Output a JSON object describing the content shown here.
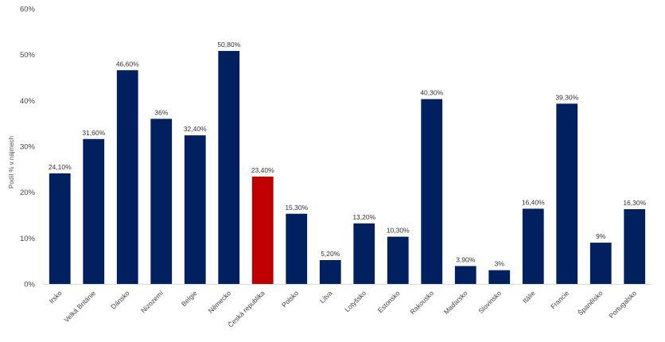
{
  "chart_data": {
    "type": "bar",
    "title": "",
    "xlabel": "",
    "ylabel": "Podíl % v nájmech",
    "ylim": [
      0,
      60
    ],
    "yticks": [
      0,
      10,
      20,
      30,
      40,
      50,
      60
    ],
    "ytick_labels": [
      "0%",
      "10%",
      "20%",
      "30%",
      "40%",
      "50%",
      "60%"
    ],
    "grid": false,
    "legend": "none",
    "categories": [
      "Irsko",
      "Velká Británie",
      "Dánsko",
      "Nizozemí",
      "Belgie",
      "Německo",
      "Česká republika",
      "Polsko",
      "Litva",
      "Lotyšsko",
      "Estonsko",
      "Rakousko",
      "Maďarsko",
      "Slovinsko",
      "Itálie",
      "Francie",
      "Španělsko",
      "Portugalsko"
    ],
    "values": [
      24.1,
      31.6,
      46.6,
      36,
      32.4,
      50.8,
      23.4,
      15.3,
      5.2,
      13.2,
      10.3,
      40.3,
      3.9,
      3,
      16.4,
      39.3,
      9,
      16.3
    ],
    "data_labels": [
      "24,10%",
      "31,60%",
      "46,60%",
      "36%",
      "32,40%",
      "50,80%",
      "23,40%",
      "15,30%",
      "5,20%",
      "13,20%",
      "10,30%",
      "40,30%",
      "3,90%",
      "3%",
      "16,40%",
      "39,30%",
      "9%",
      "16,30%"
    ],
    "colors": {
      "default": "#002060",
      "highlight": "#C00000",
      "axis": "#D9D9D9"
    },
    "highlight_category": "Česká republika"
  }
}
